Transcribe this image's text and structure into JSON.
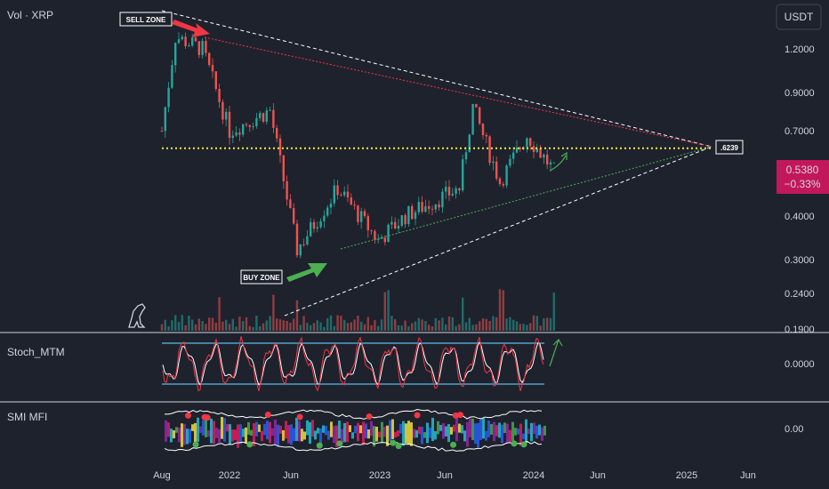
{
  "header": {
    "symbol_label": "Vol · XRP",
    "currency_button": "USDT"
  },
  "panes": {
    "stoch_label": "Stoch_MTM",
    "mfi_label": "SMI MFI"
  },
  "annotations": {
    "sell_zone": "SELL ZONE",
    "buy_zone": "BUY ZONE",
    "apex_value": ".6239",
    "current_price": "0.5380",
    "current_change": "−0.33%"
  },
  "colors": {
    "background": "#1e222d",
    "up": "#26a69a",
    "down": "#ef5350",
    "price_badge": "#c2185b",
    "yellow_line": "#f5e642",
    "green_arrow": "#4caf50",
    "red_arrow": "#f23645",
    "stoch_band": "#5cb8e6"
  },
  "chart_data": [
    {
      "type": "candlestick",
      "title": "Vol · XRP",
      "x_ticks": [
        "Aug",
        "2022",
        "Jun",
        "2023",
        "Jun",
        "2024",
        "Jun",
        "2025",
        "Jun"
      ],
      "y_scale": "log",
      "y_ticks": [
        1.2,
        0.9,
        0.7,
        0.4,
        0.3,
        0.24,
        0.19
      ],
      "y_tick_labels": [
        "1.2000",
        "0.9000",
        "0.7000",
        "0.4000",
        "0.3000",
        "0.2400",
        "0.1900"
      ],
      "ylim": [
        0.185,
        1.5
      ],
      "horizontal_level": 0.6239,
      "last_price": 0.538,
      "last_change_pct": -0.33,
      "key_points": [
        {
          "date": "2021-08",
          "price": 0.7
        },
        {
          "date": "2021-09",
          "price": 1.3
        },
        {
          "date": "2021-11",
          "price": 1.2
        },
        {
          "date": "2022-01",
          "price": 0.7
        },
        {
          "date": "2022-04",
          "price": 0.8
        },
        {
          "date": "2022-06",
          "price": 0.32
        },
        {
          "date": "2022-09",
          "price": 0.48
        },
        {
          "date": "2022-12",
          "price": 0.34
        },
        {
          "date": "2023-02",
          "price": 0.4
        },
        {
          "date": "2023-06",
          "price": 0.48
        },
        {
          "date": "2023-07",
          "price": 0.82
        },
        {
          "date": "2023-09",
          "price": 0.5
        },
        {
          "date": "2023-11",
          "price": 0.68
        },
        {
          "date": "2024-01",
          "price": 0.538
        }
      ]
    },
    {
      "type": "line",
      "title": "Stoch_MTM",
      "y_ticks": [
        0
      ],
      "y_tick_labels": [
        "0.0000"
      ]
    },
    {
      "type": "area",
      "title": "SMI MFI",
      "y_ticks": [
        0
      ],
      "y_tick_labels": [
        "0.00"
      ]
    }
  ]
}
